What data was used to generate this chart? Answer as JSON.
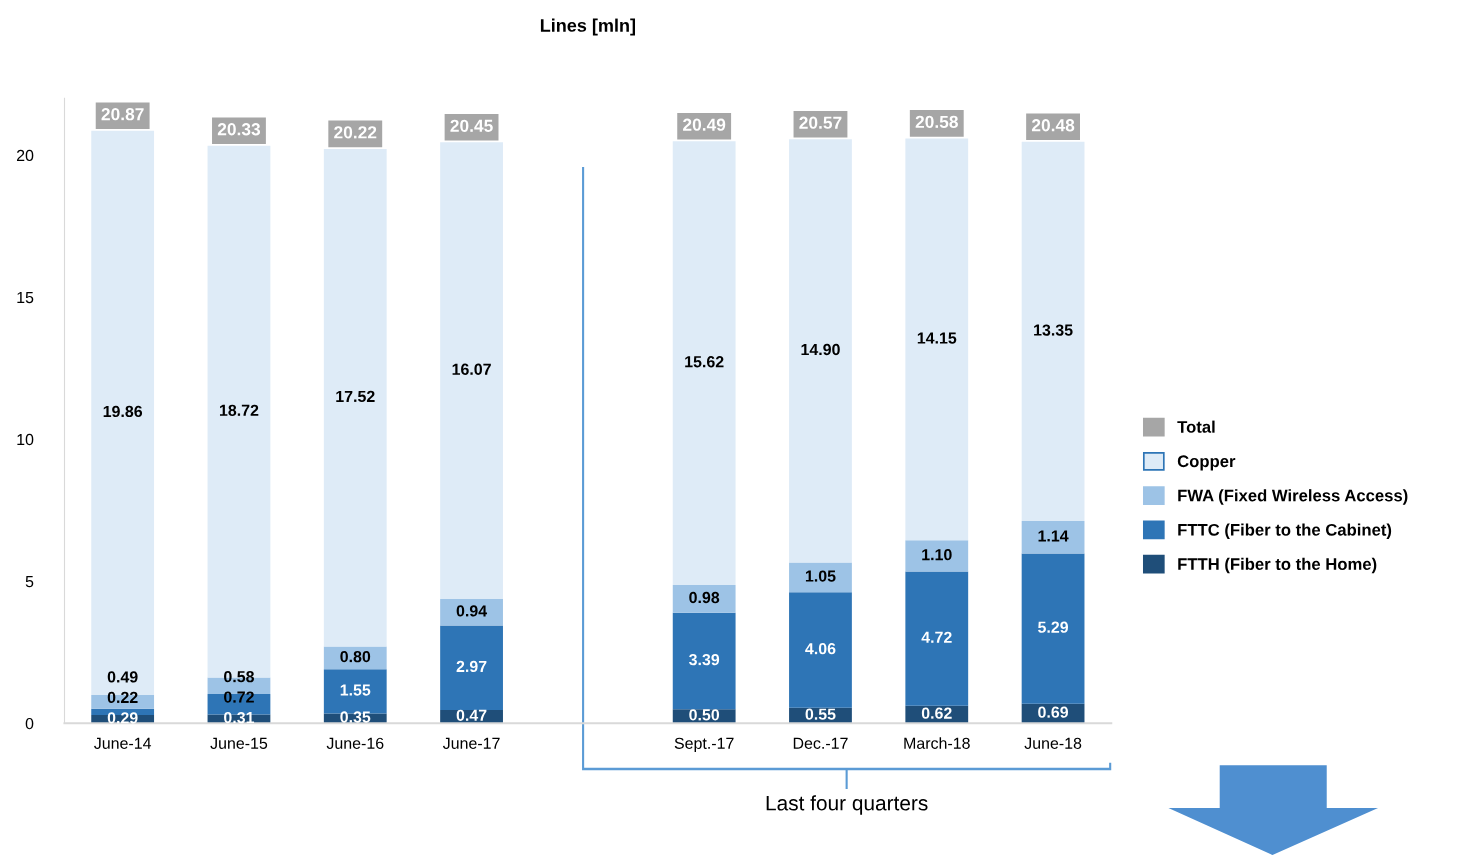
{
  "chart_data": {
    "type": "bar",
    "title": "Lines [mln]",
    "stacked": true,
    "categories": [
      "June-14",
      "June-15",
      "June-16",
      "June-17",
      null,
      "Sept.-17",
      "Dec.-17",
      "March-18",
      "June-18"
    ],
    "series": [
      {
        "name": "FTTH (Fiber to the Home)",
        "color": "#1f4e79",
        "values": [
          0.29,
          0.31,
          0.35,
          0.47,
          null,
          0.5,
          0.55,
          0.62,
          0.69
        ],
        "value_labels": [
          "0.29",
          "0.31",
          "0.35",
          "0.47",
          null,
          "0.50",
          "0.55",
          "0.62",
          "0.69"
        ]
      },
      {
        "name": "FTTC (Fiber to the Cabinet)",
        "color": "#2e75b6",
        "values": [
          0.22,
          0.72,
          1.55,
          2.97,
          null,
          3.39,
          4.06,
          4.72,
          5.29
        ],
        "value_labels": [
          "0.22",
          "0.72",
          "1.55",
          "2.97",
          null,
          "3.39",
          "4.06",
          "4.72",
          "5.29"
        ]
      },
      {
        "name": "FWA (Fixed Wireless Access)",
        "color": "#9dc3e6",
        "values": [
          0.49,
          0.58,
          0.8,
          0.94,
          null,
          0.98,
          1.05,
          1.1,
          1.14
        ],
        "value_labels": [
          "0.49",
          "0.58",
          "0.80",
          "0.94",
          null,
          "0.98",
          "1.05",
          "1.10",
          "1.14"
        ]
      },
      {
        "name": "Copper",
        "color": "#deebf7",
        "values": [
          19.86,
          18.72,
          17.52,
          16.07,
          null,
          15.62,
          14.9,
          14.15,
          13.35
        ],
        "value_labels": [
          "19.86",
          "18.72",
          "17.52",
          "16.07",
          null,
          "15.62",
          "14.90",
          "14.15",
          "13.35"
        ]
      },
      {
        "name": "Total",
        "color": "#a6a6a6",
        "values": [
          null,
          null,
          null,
          null,
          null,
          null,
          null,
          null,
          null
        ]
      }
    ],
    "totals": [
      "20.87",
      "20.33",
      "20.22",
      "20.45",
      null,
      "20.49",
      "20.57",
      "20.58",
      "20.48"
    ],
    "ylim": [
      0,
      22
    ],
    "yticks": [
      0,
      5,
      10,
      15,
      20
    ],
    "grid": false,
    "legend": "right",
    "annotations": [
      "Last four quarters"
    ]
  }
}
